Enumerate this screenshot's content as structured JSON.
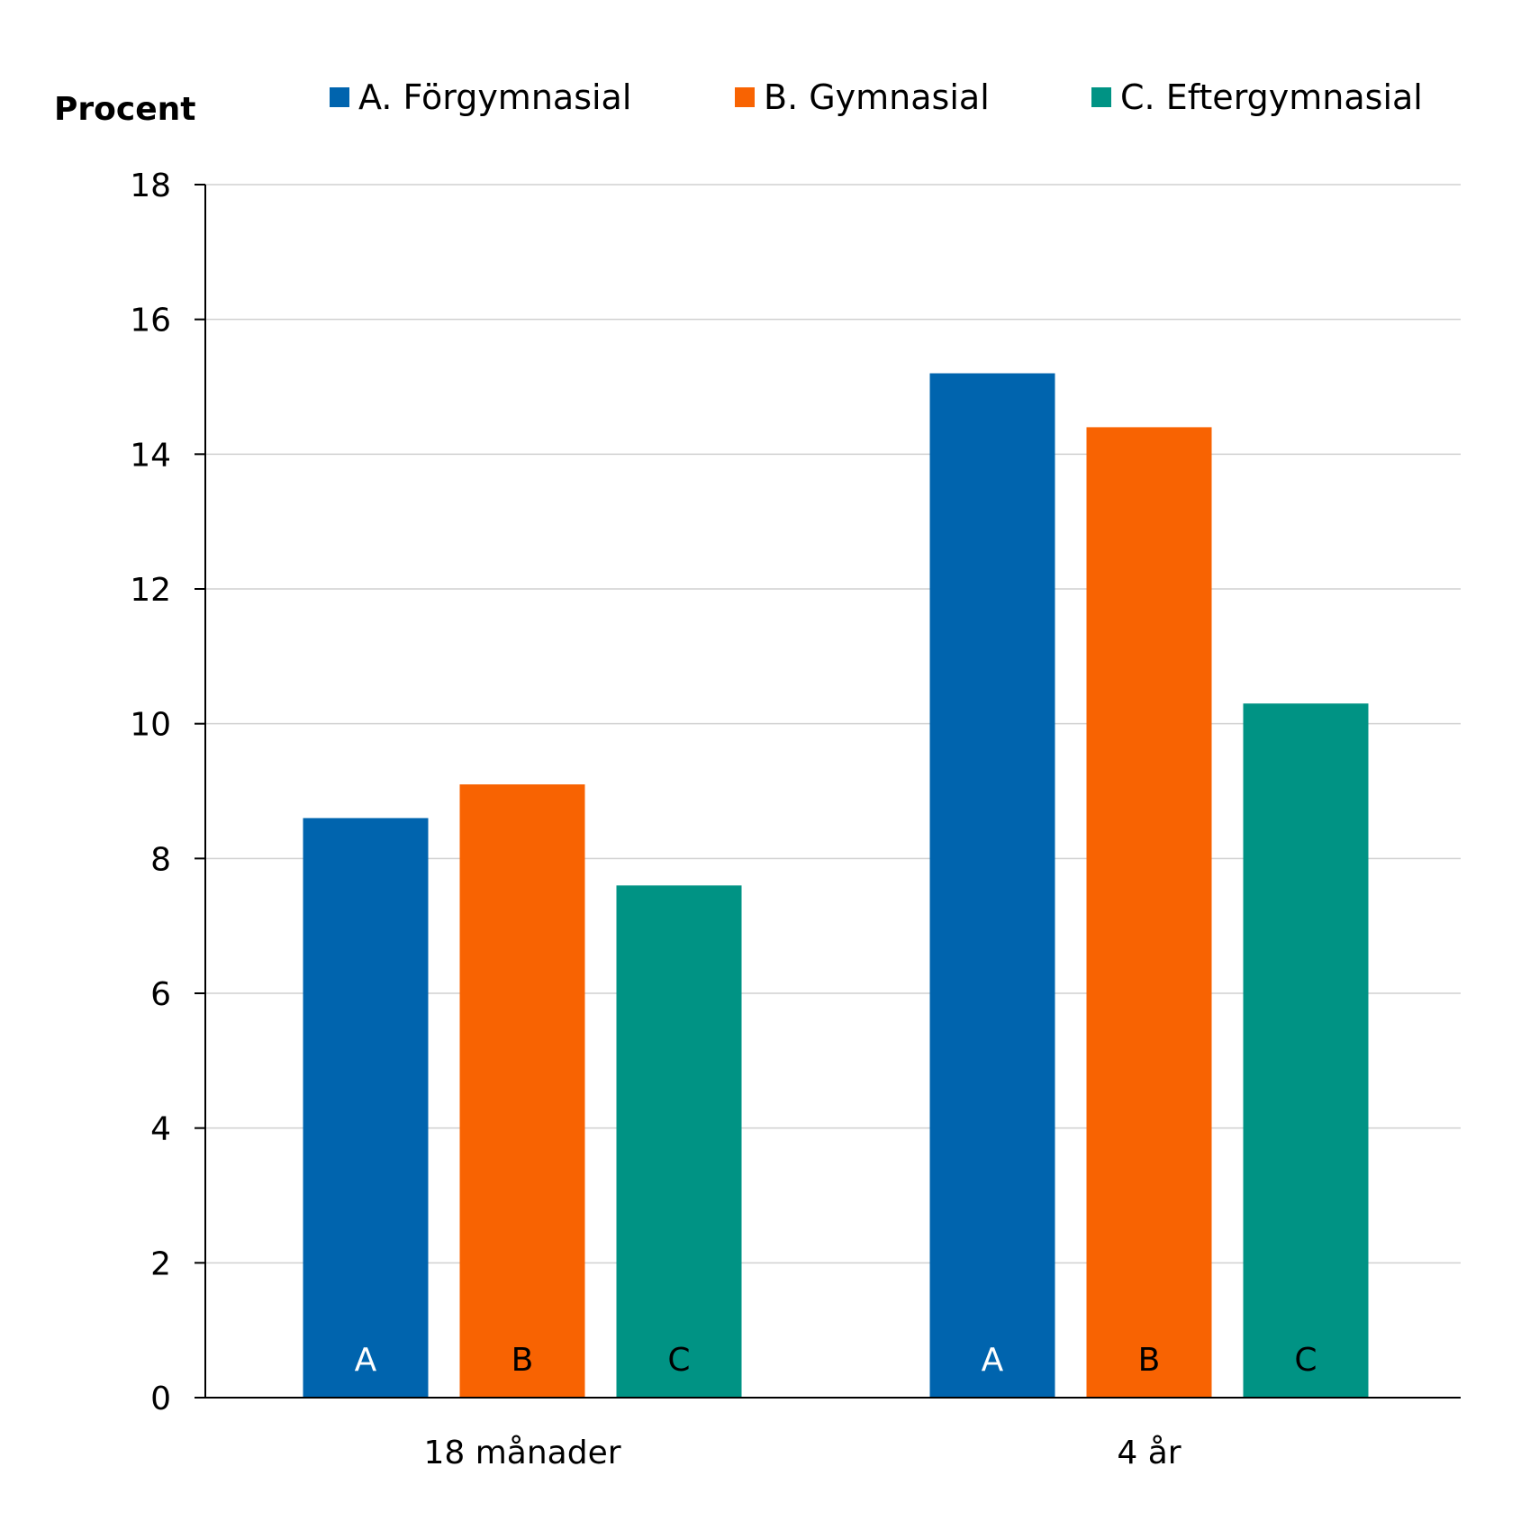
{
  "chart_data": {
    "type": "bar",
    "ylabel": "Procent",
    "ylim": [
      0,
      18
    ],
    "yticks": [
      0,
      2,
      4,
      6,
      8,
      10,
      12,
      14,
      16,
      18
    ],
    "grid": true,
    "legend_position": "top",
    "categories": [
      "18 månader",
      "4 år"
    ],
    "series": [
      {
        "name": "A. Förgymnasial",
        "short": "A",
        "color": "#0064AE",
        "label_color": "#ffffff",
        "values": [
          8.6,
          15.2
        ]
      },
      {
        "name": "B. Gymnasial",
        "short": "B",
        "color": "#F86302",
        "label_color": "#000000",
        "values": [
          9.1,
          14.4
        ]
      },
      {
        "name": "C. Eftergymnasial",
        "short": "C",
        "color": "#009384",
        "label_color": "#000000",
        "values": [
          7.6,
          10.3
        ]
      }
    ]
  }
}
